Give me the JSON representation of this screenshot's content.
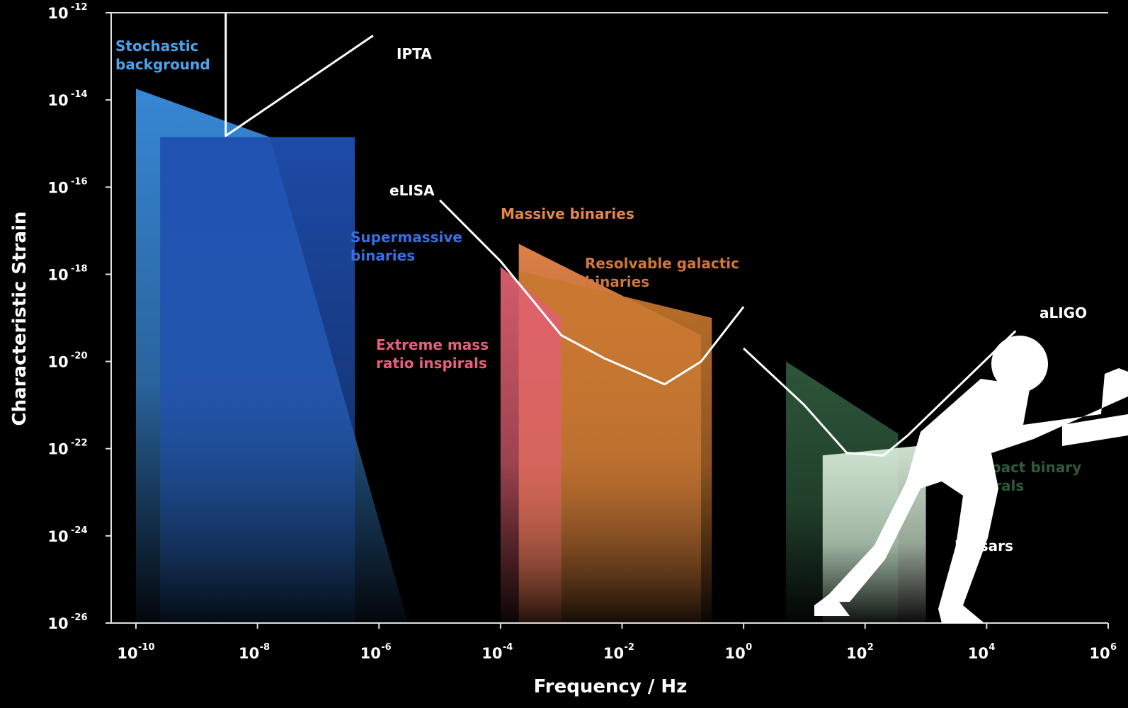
{
  "chart_data": {
    "type": "area",
    "xlabel": "Frequency / Hz",
    "ylabel": "Characteristic Strain",
    "x_scale": "log",
    "y_scale": "log",
    "xlim": [
      1e-10,
      1000000.0
    ],
    "ylim": [
      1e-26,
      1e-12
    ],
    "x_ticks": [
      {
        "base": "10",
        "exp": "-10",
        "value": 1e-10
      },
      {
        "base": "10",
        "exp": "-8",
        "value": 1e-08
      },
      {
        "base": "10",
        "exp": "-6",
        "value": 1e-06
      },
      {
        "base": "10",
        "exp": "-4",
        "value": 0.0001
      },
      {
        "base": "10",
        "exp": "-2",
        "value": 0.01
      },
      {
        "base": "10",
        "exp": "0",
        "value": 1
      },
      {
        "base": "10",
        "exp": "2",
        "value": 100.0
      },
      {
        "base": "10",
        "exp": "4",
        "value": 10000.0
      },
      {
        "base": "10",
        "exp": "6",
        "value": 1000000.0
      }
    ],
    "y_ticks": [
      {
        "base": "10",
        "exp": "-12",
        "value": 1e-12
      },
      {
        "base": "10",
        "exp": "-14",
        "value": 1e-14
      },
      {
        "base": "10",
        "exp": "-16",
        "value": 1e-16
      },
      {
        "base": "10",
        "exp": "-18",
        "value": 1e-18
      },
      {
        "base": "10",
        "exp": "-20",
        "value": 1e-20
      },
      {
        "base": "10",
        "exp": "-22",
        "value": 1e-22
      },
      {
        "base": "10",
        "exp": "-24",
        "value": 1e-24
      },
      {
        "base": "10",
        "exp": "-26",
        "value": 1e-26
      }
    ],
    "regions": [
      {
        "label": "Stochastic background",
        "color": "#3a8ee0",
        "points": [
          [
            1e-10,
            1.8e-14
          ],
          [
            1e-10,
            1e-26
          ],
          [
            3e-06,
            1e-26
          ],
          [
            1.6e-08,
            1.4e-15
          ]
        ],
        "label_lines": [
          "Stochastic",
          "background"
        ]
      },
      {
        "label": "Supermassive binaries",
        "color": "#1f4fb0",
        "points": [
          [
            2.5e-10,
            1.4e-15
          ],
          [
            4e-07,
            1.4e-15
          ],
          [
            4e-07,
            1e-26
          ],
          [
            2.5e-10,
            1e-26
          ]
        ],
        "label_lines": [
          "Supermassive",
          "binaries"
        ]
      },
      {
        "label": "Massive binaries",
        "color": "#e8874a",
        "points": [
          [
            0.0002,
            5e-18
          ],
          [
            0.2,
            4e-20
          ],
          [
            0.2,
            1e-26
          ],
          [
            0.0002,
            1e-26
          ]
        ],
        "label_lines": [
          "Massive binaries"
        ]
      },
      {
        "label": "Resolvable galactic binaries",
        "color": "#c8782e",
        "points": [
          [
            0.0002,
            1.2e-18
          ],
          [
            0.3,
            1e-19
          ],
          [
            0.3,
            1e-26
          ],
          [
            0.0002,
            1e-26
          ]
        ],
        "label_lines": [
          "Resolvable galactic",
          "binaries"
        ]
      },
      {
        "label": "Extreme mass ratio inspirals",
        "color": "#e06070",
        "points": [
          [
            0.0001,
            1.5e-18
          ],
          [
            0.0001,
            1e-26
          ],
          [
            0.001,
            1e-26
          ],
          [
            0.001,
            1e-19
          ]
        ],
        "label_lines": [
          "Extreme mass",
          "ratio inspirals"
        ]
      },
      {
        "label": "Compact binary inspirals",
        "color": "#2f5a3d",
        "points": [
          [
            5,
            1e-20
          ],
          [
            350,
            2.2e-22
          ],
          [
            350,
            1e-26
          ],
          [
            5,
            1e-26
          ]
        ],
        "label_lines": [
          "Compact binary",
          "inspirals"
        ]
      },
      {
        "label": "Pulsars",
        "color": "#d8ecd8",
        "points": [
          [
            20,
            7e-23
          ],
          [
            1000,
            1.2e-22
          ],
          [
            1000,
            1e-26
          ],
          [
            20,
            1e-26
          ]
        ],
        "label_lines": [
          "Pulsars"
        ]
      }
    ],
    "curves": [
      {
        "name": "IPTA",
        "color": "#ffffff",
        "points": [
          [
            3e-09,
            1e-12
          ],
          [
            3e-09,
            1.5e-15
          ],
          [
            8e-07,
            3e-13
          ]
        ]
      },
      {
        "name": "eLISA",
        "color": "#ffffff",
        "points": [
          [
            1e-05,
            5e-17
          ],
          [
            0.0001,
            2e-18
          ],
          [
            0.001,
            4e-20
          ],
          [
            0.005,
            1.2e-20
          ],
          [
            0.05,
            3e-21
          ],
          [
            0.2,
            1e-20
          ],
          [
            1,
            1.8e-19
          ]
        ]
      },
      {
        "name": "aLIGO",
        "color": "#ffffff",
        "points": [
          [
            1,
            2e-20
          ],
          [
            10,
            1e-21
          ],
          [
            50,
            8e-23
          ],
          [
            200,
            7e-23
          ],
          [
            500,
            2e-22
          ],
          [
            30000,
            5e-20
          ]
        ]
      }
    ]
  }
}
